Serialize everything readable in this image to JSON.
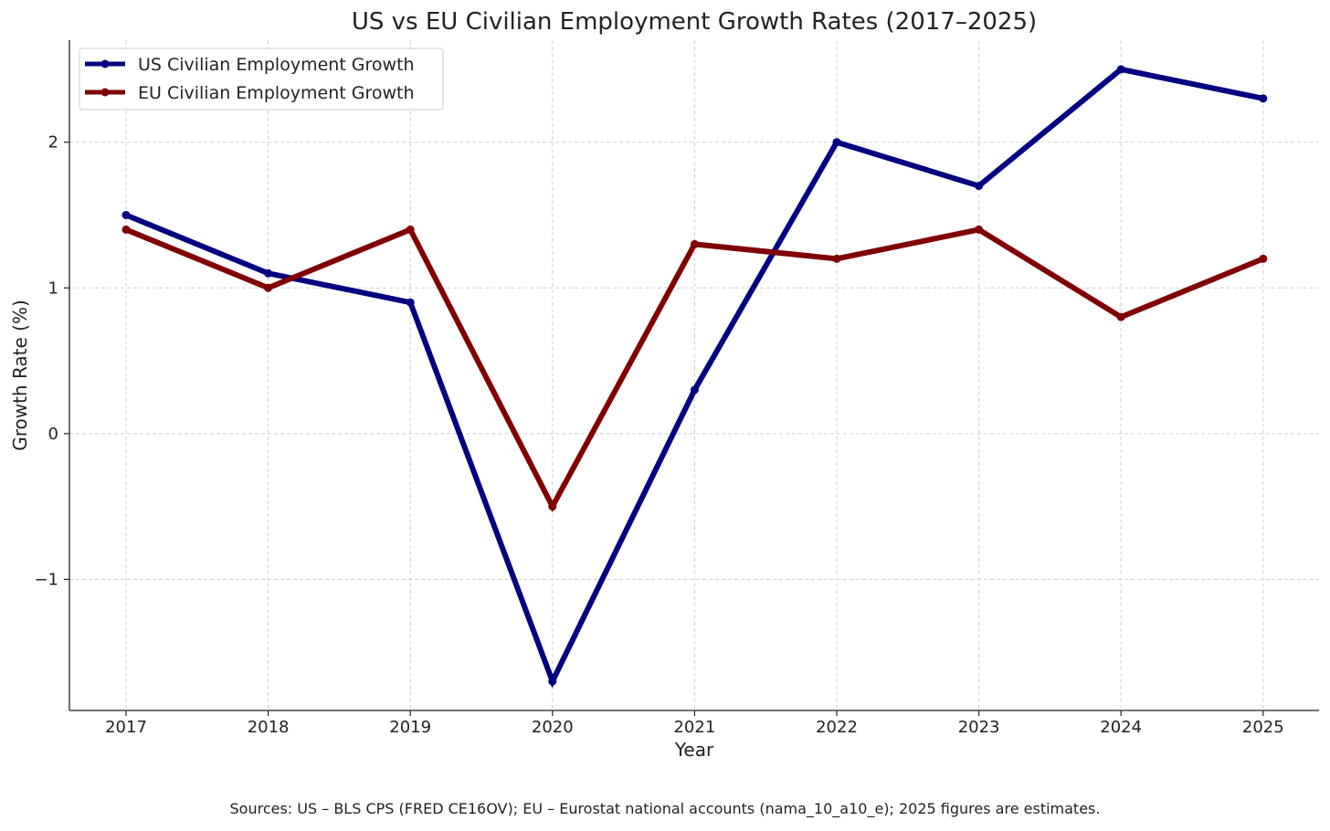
{
  "chart_data": {
    "type": "line",
    "title": "US vs EU Civilian Employment Growth Rates (2017–2025)",
    "xlabel": "Year",
    "ylabel": "Growth Rate (%)",
    "categories": [
      "2017",
      "2018",
      "2019",
      "2020",
      "2021",
      "2022",
      "2023",
      "2024",
      "2025"
    ],
    "ylim": [
      -1.9,
      2.7
    ],
    "yticks": [
      -1,
      0,
      1,
      2
    ],
    "ytick_labels": [
      "−1",
      "0",
      "1",
      "2"
    ],
    "grid": true,
    "legend_position": "top-left",
    "series": [
      {
        "name": "US Civilian Employment Growth",
        "color": "#000080",
        "values": [
          1.5,
          1.1,
          0.9,
          -1.7,
          0.3,
          2.0,
          1.7,
          2.5,
          2.3
        ]
      },
      {
        "name": "EU Civilian Employment Growth",
        "color": "#800000",
        "values": [
          1.4,
          1.0,
          1.4,
          -0.5,
          1.3,
          1.2,
          1.4,
          0.8,
          1.2
        ]
      }
    ]
  },
  "footnote": "Sources: US – BLS CPS (FRED CE16OV); EU – Eurostat national accounts (nama_10_a10_e); 2025 figures are estimates."
}
